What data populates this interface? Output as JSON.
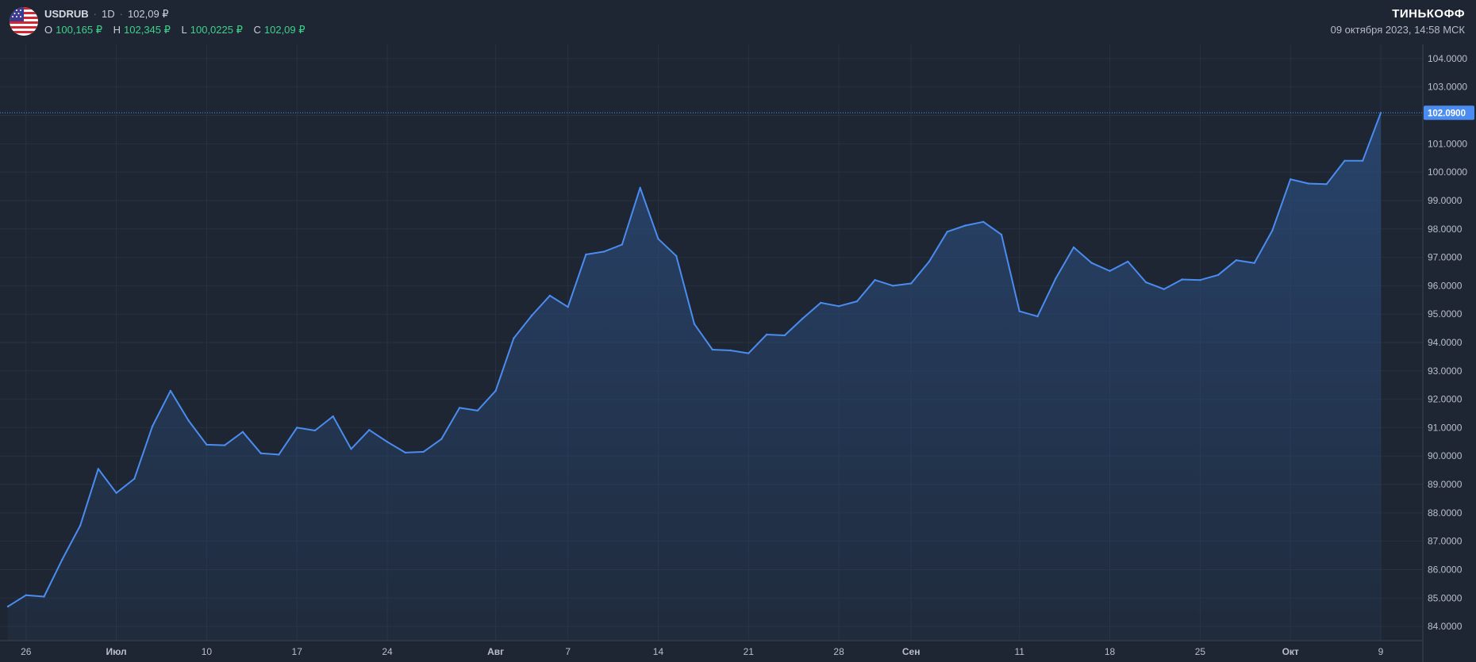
{
  "header": {
    "symbol": "USDRUB",
    "interval": "1D",
    "last_price": "102,09 ₽",
    "ohlc": [
      {
        "key": "O",
        "value": "100,165 ₽"
      },
      {
        "key": "H",
        "value": "102,345 ₽"
      },
      {
        "key": "L",
        "value": "100,0225 ₽"
      },
      {
        "key": "C",
        "value": "102,09 ₽"
      }
    ],
    "brand": "ТИНЬКОФФ",
    "datetime": "09 октября 2023, 14:58 МСК",
    "flag_icon": "us-flag-icon"
  },
  "colors": {
    "background": "#1e2633",
    "line": "#4a8cf0",
    "grid": "#273142",
    "ohlc_value": "#3fd18a",
    "price_label_bg": "#4a8cf0"
  },
  "chart_data": {
    "type": "area",
    "x": [
      "2023-06-23",
      "2023-06-26",
      "2023-06-27",
      "2023-06-28",
      "2023-06-29",
      "2023-06-30",
      "2023-07-03",
      "2023-07-04",
      "2023-07-05",
      "2023-07-06",
      "2023-07-07",
      "2023-07-10",
      "2023-07-11",
      "2023-07-12",
      "2023-07-13",
      "2023-07-14",
      "2023-07-17",
      "2023-07-18",
      "2023-07-19",
      "2023-07-20",
      "2023-07-21",
      "2023-07-24",
      "2023-07-25",
      "2023-07-26",
      "2023-07-27",
      "2023-07-28",
      "2023-07-31",
      "2023-08-01",
      "2023-08-02",
      "2023-08-03",
      "2023-08-04",
      "2023-08-07",
      "2023-08-08",
      "2023-08-09",
      "2023-08-10",
      "2023-08-11",
      "2023-08-14",
      "2023-08-15",
      "2023-08-16",
      "2023-08-17",
      "2023-08-18",
      "2023-08-21",
      "2023-08-22",
      "2023-08-23",
      "2023-08-24",
      "2023-08-25",
      "2023-08-28",
      "2023-08-29",
      "2023-08-30",
      "2023-08-31",
      "2023-09-01",
      "2023-09-04",
      "2023-09-05",
      "2023-09-06",
      "2023-09-07",
      "2023-09-08",
      "2023-09-11",
      "2023-09-12",
      "2023-09-13",
      "2023-09-14",
      "2023-09-15",
      "2023-09-18",
      "2023-09-19",
      "2023-09-20",
      "2023-09-21",
      "2023-09-22",
      "2023-09-25",
      "2023-09-26",
      "2023-09-27",
      "2023-09-28",
      "2023-09-29",
      "2023-10-02",
      "2023-10-03",
      "2023-10-04",
      "2023-10-05",
      "2023-10-06",
      "2023-10-09"
    ],
    "y": [
      84.7,
      85.1,
      85.05,
      86.35,
      87.55,
      89.55,
      88.7,
      89.2,
      91.05,
      92.3,
      91.25,
      90.4,
      90.38,
      90.85,
      90.1,
      90.05,
      91.0,
      90.9,
      91.4,
      90.25,
      90.92,
      90.5,
      90.12,
      90.15,
      90.6,
      91.7,
      91.6,
      92.3,
      94.15,
      94.95,
      95.65,
      95.25,
      97.1,
      97.2,
      97.45,
      99.45,
      97.65,
      97.05,
      94.65,
      93.75,
      93.72,
      93.62,
      94.28,
      94.25,
      94.85,
      95.4,
      95.28,
      95.45,
      96.2,
      96.0,
      96.08,
      96.85,
      97.9,
      98.12,
      98.25,
      97.8,
      95.1,
      94.92,
      96.25,
      97.35,
      96.8,
      96.52,
      96.85,
      96.12,
      95.88,
      96.22,
      96.2,
      96.38,
      96.9,
      96.8,
      97.95,
      99.75,
      99.6,
      99.58,
      100.4,
      100.4,
      102.09
    ],
    "ylim": [
      83.5,
      104.5
    ],
    "y_ticks": [
      "84.0000",
      "85.0000",
      "86.0000",
      "87.0000",
      "88.0000",
      "89.0000",
      "90.0000",
      "91.0000",
      "92.0000",
      "93.0000",
      "94.0000",
      "95.0000",
      "96.0000",
      "97.0000",
      "98.0000",
      "99.0000",
      "100.0000",
      "101.0000",
      "102.0000",
      "103.0000",
      "104.0000"
    ],
    "x_ticks": [
      {
        "label": "26",
        "date": "2023-06-26",
        "bold": false
      },
      {
        "label": "Июл",
        "date": "2023-07-03",
        "bold": true
      },
      {
        "label": "10",
        "date": "2023-07-10",
        "bold": false
      },
      {
        "label": "17",
        "date": "2023-07-17",
        "bold": false
      },
      {
        "label": "24",
        "date": "2023-07-24",
        "bold": false
      },
      {
        "label": "Авг",
        "date": "2023-08-01",
        "bold": true
      },
      {
        "label": "7",
        "date": "2023-08-07",
        "bold": false
      },
      {
        "label": "14",
        "date": "2023-08-14",
        "bold": false
      },
      {
        "label": "21",
        "date": "2023-08-21",
        "bold": false
      },
      {
        "label": "28",
        "date": "2023-08-28",
        "bold": false
      },
      {
        "label": "Сен",
        "date": "2023-09-01",
        "bold": true
      },
      {
        "label": "11",
        "date": "2023-09-11",
        "bold": false
      },
      {
        "label": "18",
        "date": "2023-09-18",
        "bold": false
      },
      {
        "label": "25",
        "date": "2023-09-25",
        "bold": false
      },
      {
        "label": "Окт",
        "date": "2023-10-02",
        "bold": true
      },
      {
        "label": "9",
        "date": "2023-10-09",
        "bold": false
      }
    ],
    "last_value_label": "102.0900",
    "grid": true,
    "title": "",
    "xlabel": "",
    "ylabel": ""
  }
}
